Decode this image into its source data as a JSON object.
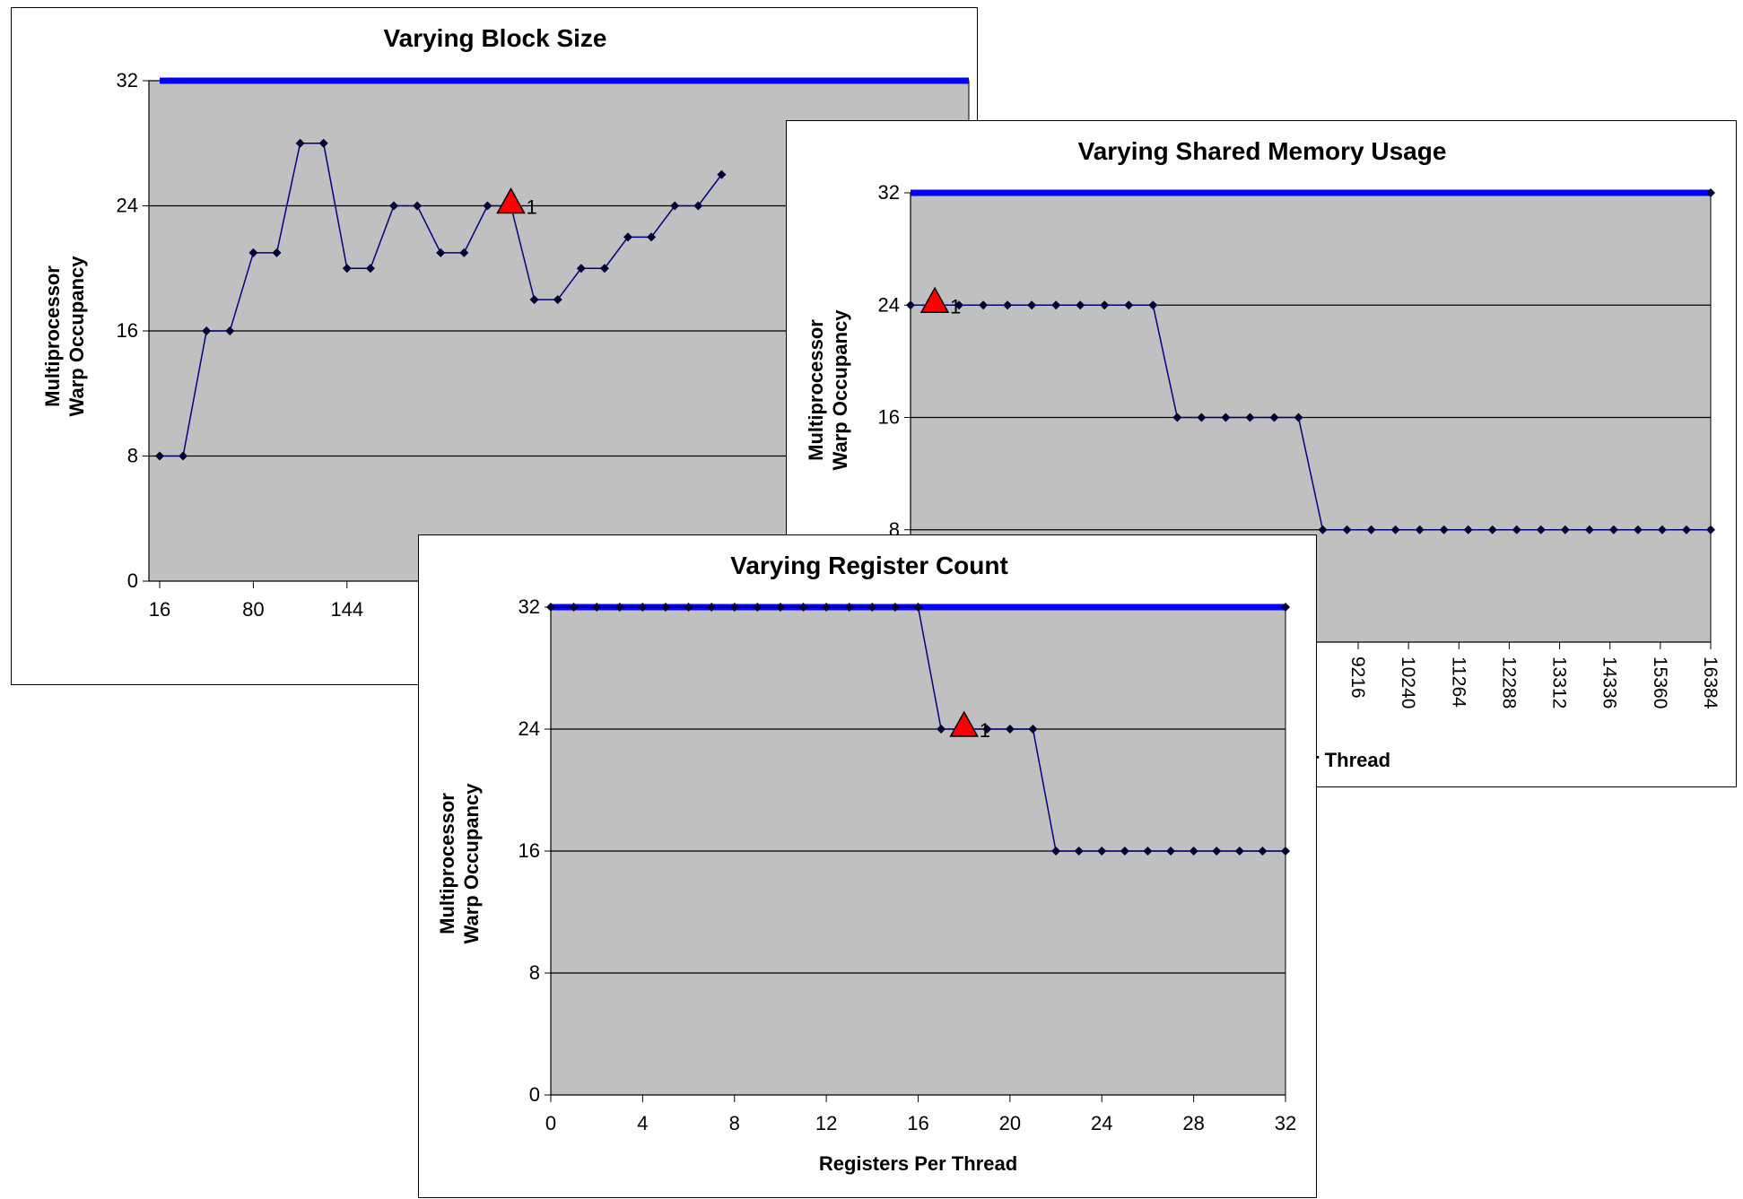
{
  "colors": {
    "plot_bg": "#c0c0c0",
    "grid": "#000000",
    "series_line": "#000080",
    "marker": "#000033",
    "limit_line": "#0000ff",
    "highlight": "#ff0000"
  },
  "chart_data": [
    {
      "type": "line",
      "title": "Varying Block Size",
      "xlabel": "",
      "ylabel_lines": [
        "Multiprocessor",
        "Warp Occupancy"
      ],
      "x_tick_labels": [
        "16",
        "80",
        "144"
      ],
      "x_visible_range": [
        16,
        176
      ],
      "x": [
        16,
        32,
        48,
        64,
        80,
        96,
        112,
        128,
        144,
        160,
        176,
        192,
        208,
        224,
        240,
        256,
        272,
        288,
        304,
        320,
        336,
        352,
        368,
        384,
        400
      ],
      "ylim": [
        0,
        32
      ],
      "yticks": [
        0,
        8,
        16,
        24,
        32
      ],
      "series": [
        {
          "name": "",
          "values": [
            8,
            8,
            16,
            16,
            21,
            21,
            28,
            28,
            20,
            20,
            24,
            24,
            21,
            21,
            24,
            24,
            18,
            18,
            20,
            20,
            22,
            22,
            24,
            24,
            26
          ]
        },
        {
          "name": "",
          "values": [
            32,
            32
          ],
          "x": [
            16,
            512
          ],
          "role": "limit"
        }
      ],
      "highlight": {
        "x": 256,
        "y": 24,
        "label": "1"
      },
      "grid": true,
      "legend": "none"
    },
    {
      "type": "line",
      "title": "Varying Shared Memory Usage",
      "xlabel": "Shared Memory Per Thread",
      "ylabel_lines": [
        "Multiprocessor",
        "Warp Occupancy"
      ],
      "x_tick_labels": [
        "9216",
        "10240",
        "11264",
        "12288",
        "13312",
        "14336",
        "15360",
        "16384"
      ],
      "ylim": [
        0,
        32
      ],
      "yticks": [
        8,
        16,
        24,
        32
      ],
      "series": [
        {
          "name": "",
          "values": [
            24,
            24,
            24,
            24,
            24,
            24,
            24,
            24,
            24,
            24,
            24,
            16,
            16,
            16,
            16,
            16,
            16,
            8,
            8,
            8,
            8,
            8,
            8,
            8,
            8,
            8,
            8,
            8,
            8,
            8,
            8,
            8,
            8,
            8
          ]
        },
        {
          "name": "",
          "values": [
            32,
            32
          ],
          "role": "limit"
        }
      ],
      "highlight": {
        "index": 1,
        "y": 24,
        "label": "1"
      },
      "grid": true,
      "legend": "none"
    },
    {
      "type": "line",
      "title": "Varying Register Count",
      "xlabel": "Registers Per Thread",
      "ylabel_lines": [
        "Multiprocessor",
        "Warp Occupancy"
      ],
      "x_tick_labels": [
        "0",
        "4",
        "8",
        "12",
        "16",
        "20",
        "24",
        "28",
        "32"
      ],
      "xticks": [
        0,
        4,
        8,
        12,
        16,
        20,
        24,
        28,
        32
      ],
      "xlim": [
        0,
        32
      ],
      "ylim": [
        0,
        32
      ],
      "yticks": [
        0,
        8,
        16,
        24,
        32
      ],
      "x": [
        0,
        1,
        2,
        3,
        4,
        5,
        6,
        7,
        8,
        9,
        10,
        11,
        12,
        13,
        14,
        15,
        16,
        17,
        18,
        19,
        20,
        21,
        22,
        23,
        24,
        25,
        26,
        27,
        28,
        29,
        30,
        31,
        32
      ],
      "series": [
        {
          "name": "",
          "values": [
            32,
            32,
            32,
            32,
            32,
            32,
            32,
            32,
            32,
            32,
            32,
            32,
            32,
            32,
            32,
            32,
            32,
            24,
            24,
            24,
            24,
            24,
            16,
            16,
            16,
            16,
            16,
            16,
            16,
            16,
            16,
            16,
            16
          ]
        },
        {
          "name": "",
          "values": [
            32,
            32
          ],
          "x": [
            0,
            32
          ],
          "role": "limit"
        }
      ],
      "highlight": {
        "x": 18,
        "y": 24,
        "label": "1"
      },
      "grid": true,
      "legend": "none"
    }
  ]
}
